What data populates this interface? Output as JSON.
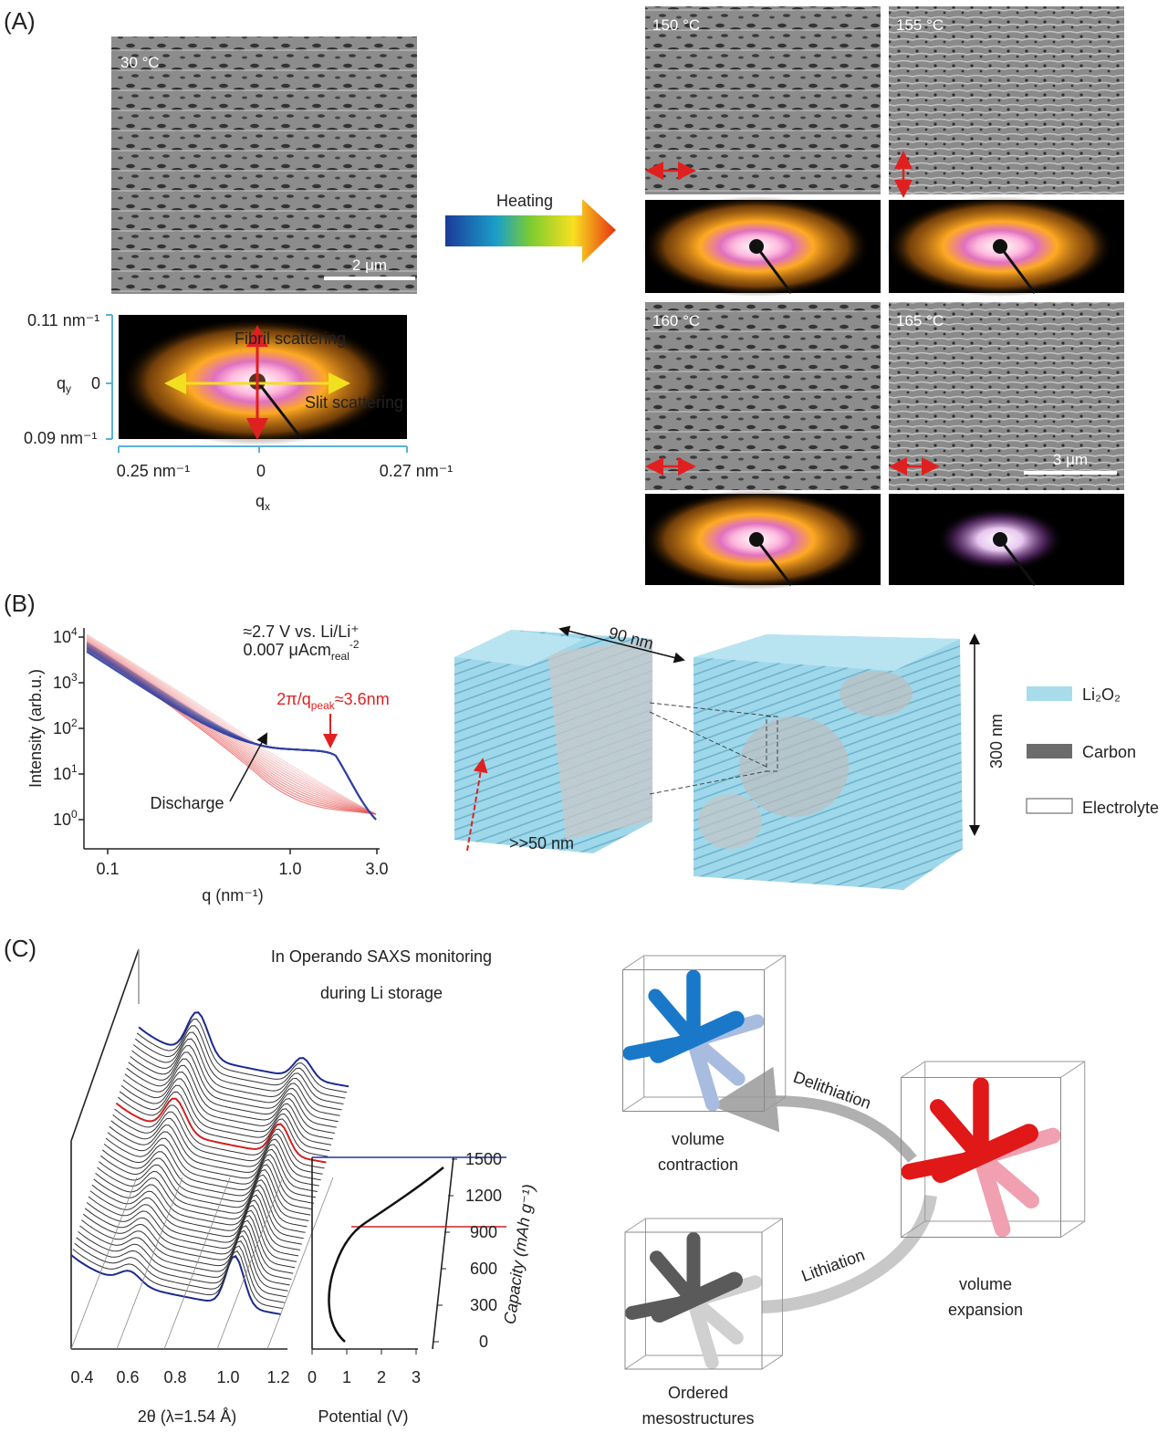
{
  "panel_a": {
    "label": "(A)",
    "initial": {
      "temperature": "30 °C",
      "scale_bar": "2 μm"
    },
    "saxs": {
      "qy_top": "0.11 nm⁻¹",
      "qy_label": {
        "main": "q",
        "sub": "y"
      },
      "qy_zero": "0",
      "qy_bottom": "0.09 nm⁻¹",
      "qx_left": "0.25 nm⁻¹",
      "qx_zero": "0",
      "qx_right": "0.27 nm⁻¹",
      "qx_label": {
        "main": "q",
        "sub": "x"
      },
      "fibril": "Fibril scattering",
      "slit": "Slit scattering"
    },
    "arrow": "Heating",
    "heated": [
      {
        "temperature": "150 °C"
      },
      {
        "temperature": "155 °C"
      },
      {
        "temperature": "160 °C"
      },
      {
        "temperature": "165 °C",
        "scale_bar": "3 μm"
      }
    ]
  },
  "panel_b": {
    "label": "(B)",
    "plot": {
      "y_label": "Intensity (arb.u.)",
      "y_ticks": [
        {
          "base": "10",
          "exp": "4"
        },
        {
          "base": "10",
          "exp": "3"
        },
        {
          "base": "10",
          "exp": "2"
        },
        {
          "base": "10",
          "exp": "1"
        },
        {
          "base": "10",
          "exp": "0"
        }
      ],
      "x_ticks": [
        "0.1",
        "1.0",
        "3.0"
      ],
      "x_label": "q (nm⁻¹)",
      "condition": "≈2.7 V vs. Li/Li⁺",
      "current": {
        "main": "0.007 μAcm",
        "sub": "real",
        "sup": "-2"
      },
      "peak": {
        "pre": "2π/q",
        "sub": "peak",
        "post": "≈3.6nm"
      },
      "arrow": "Discharge"
    },
    "model": {
      "width": "90 nm",
      "height": "300 nm",
      "depth": ">>50 nm"
    },
    "legend": [
      "Li₂O₂",
      "Carbon",
      "Electrolyte"
    ]
  },
  "panel_c": {
    "label": "(C)",
    "title": [
      "In Operando SAXS monitoring",
      "during Li storage"
    ],
    "waterfall": {
      "x_ticks": [
        "0.4",
        "0.6",
        "0.8",
        "1.0",
        "1.2"
      ],
      "x_label": "2θ (λ=1.54 Å)"
    },
    "potential": {
      "x_ticks": [
        "0",
        "1",
        "2",
        "3"
      ],
      "x_label": "Potential (V)",
      "capacity_ticks": [
        "0",
        "300",
        "600",
        "900",
        "1200",
        "1500"
      ],
      "capacity_label": "Capacity (mAh g⁻¹)"
    },
    "scheme": {
      "delithiation": "Delithiation",
      "lithiation": "Lithiation",
      "contraction": [
        "volume",
        "contraction"
      ],
      "expansion": [
        "volume",
        "expansion"
      ],
      "ordered": [
        "Ordered",
        "mesostructures"
      ]
    }
  }
}
